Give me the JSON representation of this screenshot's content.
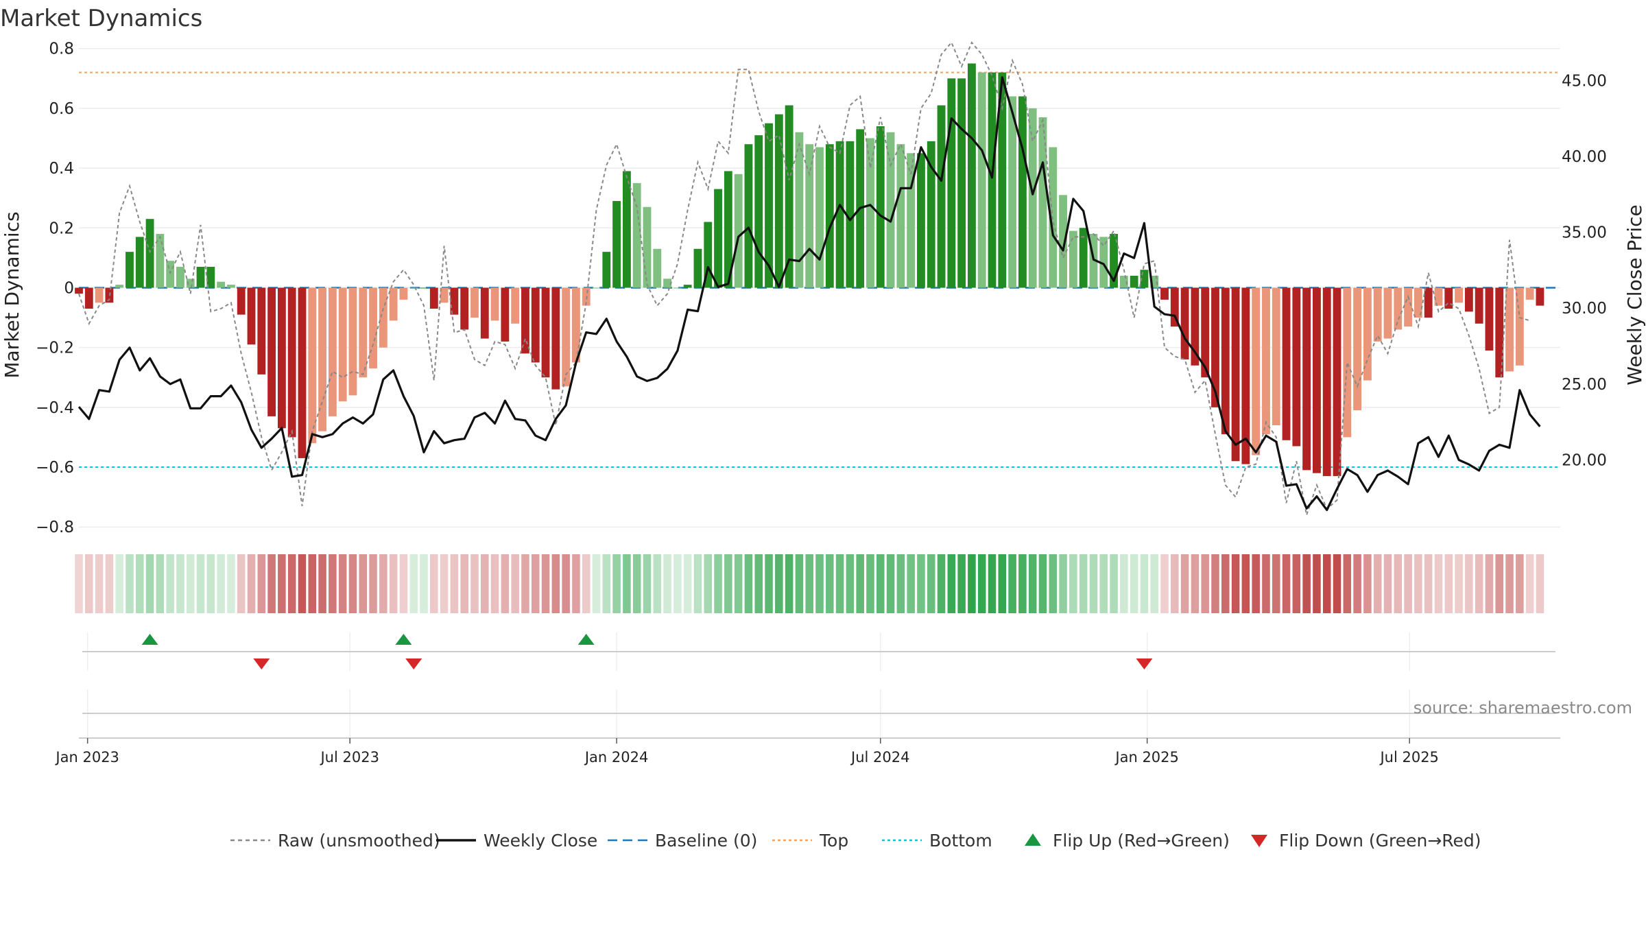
{
  "chart_data": {
    "type": "bar",
    "title": "Market Dynamics",
    "ylabel": "Market Dynamics",
    "y2label": "Weekly Close Price",
    "ylim": [
      -0.85,
      0.82
    ],
    "y2lim": [
      14.6,
      47.5
    ],
    "yticks": [
      "0.8",
      "0.6",
      "0.4",
      "0.2",
      "0",
      "−0.2",
      "−0.4",
      "−0.6",
      "−0.8"
    ],
    "y2ticks": [
      "45.00",
      "40.00",
      "35.00",
      "30.00",
      "25.00",
      "20.00"
    ],
    "x_start": "2022-12-26",
    "x_end": "2025-10-13",
    "xticks": [
      {
        "label": "Jan 2023",
        "date": "2023-01-01"
      },
      {
        "label": "Jul 2023",
        "date": "2023-07-01"
      },
      {
        "label": "Jan 2024",
        "date": "2024-01-01"
      },
      {
        "label": "Jul 2024",
        "date": "2024-07-01"
      },
      {
        "label": "Jan 2025",
        "date": "2025-01-01"
      },
      {
        "label": "Jul 2025",
        "date": "2025-07-01"
      }
    ],
    "top_level": 0.72,
    "bottom_level": -0.6,
    "baseline": 0,
    "grid": true,
    "legend_position": "bottom-center",
    "series": [
      {
        "name": "Raw (unsmoothed)",
        "kind": "line-dashed",
        "color": "#888888"
      },
      {
        "name": "Weekly Close",
        "kind": "line",
        "color": "#111111"
      },
      {
        "name": "Baseline (0)",
        "kind": "line-dashed",
        "color": "#1f77b4"
      },
      {
        "name": "Top",
        "kind": "line-dotted",
        "color": "#f4a261"
      },
      {
        "name": "Bottom",
        "kind": "line-dotted",
        "color": "#17becf"
      },
      {
        "name": "Flip Up (Red→Green)",
        "kind": "marker-up",
        "color": "#1a9641"
      },
      {
        "name": "Flip Down (Green→Red)",
        "kind": "marker-down",
        "color": "#d62728"
      }
    ],
    "weekly_start": "2022-12-26",
    "dynamics": [
      -0.02,
      -0.07,
      -0.05,
      -0.05,
      0.01,
      0.12,
      0.17,
      0.23,
      0.18,
      0.09,
      0.07,
      0.03,
      0.07,
      0.07,
      0.02,
      0.01,
      -0.09,
      -0.19,
      -0.29,
      -0.43,
      -0.47,
      -0.5,
      -0.57,
      -0.52,
      -0.48,
      -0.43,
      -0.38,
      -0.36,
      -0.3,
      -0.27,
      -0.2,
      -0.11,
      -0.04,
      0.0,
      0.0,
      -0.07,
      -0.05,
      -0.09,
      -0.14,
      -0.1,
      -0.17,
      -0.11,
      -0.18,
      -0.12,
      -0.22,
      -0.25,
      -0.3,
      -0.34,
      -0.33,
      -0.25,
      -0.06,
      0.0,
      0.12,
      0.29,
      0.39,
      0.35,
      0.27,
      0.13,
      0.03,
      0.0,
      0.01,
      0.13,
      0.22,
      0.33,
      0.39,
      0.38,
      0.48,
      0.51,
      0.55,
      0.58,
      0.61,
      0.52,
      0.48,
      0.47,
      0.48,
      0.49,
      0.49,
      0.53,
      0.5,
      0.54,
      0.52,
      0.48,
      0.45,
      0.45,
      0.49,
      0.61,
      0.7,
      0.7,
      0.75,
      0.72,
      0.72,
      0.72,
      0.64,
      0.64,
      0.6,
      0.57,
      0.47,
      0.31,
      0.19,
      0.2,
      0.18,
      0.17,
      0.18,
      0.04,
      0.04,
      0.06,
      0.04,
      -0.04,
      -0.13,
      -0.24,
      -0.26,
      -0.3,
      -0.4,
      -0.49,
      -0.58,
      -0.59,
      -0.56,
      -0.49,
      -0.46,
      -0.51,
      -0.53,
      -0.61,
      -0.62,
      -0.63,
      -0.63,
      -0.5,
      -0.41,
      -0.31,
      -0.18,
      -0.17,
      -0.14,
      -0.13,
      -0.1,
      -0.1,
      -0.06,
      -0.07,
      -0.05,
      -0.08,
      -0.12,
      -0.21,
      -0.3,
      -0.28,
      -0.26,
      -0.04,
      -0.06
    ],
    "raw": [
      -0.02,
      -0.12,
      -0.06,
      -0.04,
      0.25,
      0.34,
      0.22,
      0.12,
      0.17,
      0.05,
      0.12,
      -0.02,
      0.21,
      -0.08,
      -0.07,
      -0.05,
      -0.22,
      -0.35,
      -0.5,
      -0.61,
      -0.55,
      -0.48,
      -0.73,
      -0.48,
      -0.38,
      -0.28,
      -0.3,
      -0.28,
      -0.29,
      -0.19,
      -0.07,
      0.02,
      0.06,
      0.01,
      -0.06,
      -0.31,
      0.14,
      -0.15,
      -0.14,
      -0.24,
      -0.26,
      -0.18,
      -0.19,
      -0.27,
      -0.17,
      -0.26,
      -0.3,
      -0.46,
      -0.29,
      -0.25,
      -0.05,
      0.26,
      0.41,
      0.48,
      0.37,
      0.27,
      0.01,
      -0.06,
      -0.02,
      0.08,
      0.26,
      0.42,
      0.33,
      0.49,
      0.45,
      0.73,
      0.73,
      0.59,
      0.49,
      0.51,
      0.36,
      0.48,
      0.38,
      0.54,
      0.47,
      0.45,
      0.61,
      0.64,
      0.4,
      0.57,
      0.41,
      0.48,
      0.38,
      0.6,
      0.65,
      0.78,
      0.82,
      0.74,
      0.82,
      0.78,
      0.71,
      0.6,
      0.76,
      0.68,
      0.49,
      0.56,
      0.22,
      0.1,
      0.17,
      0.17,
      0.18,
      0.14,
      0.19,
      0.06,
      -0.1,
      0.08,
      0.09,
      -0.2,
      -0.23,
      -0.24,
      -0.35,
      -0.31,
      -0.49,
      -0.66,
      -0.7,
      -0.6,
      -0.59,
      -0.45,
      -0.5,
      -0.72,
      -0.58,
      -0.76,
      -0.66,
      -0.74,
      -0.71,
      -0.25,
      -0.33,
      -0.24,
      -0.16,
      -0.22,
      -0.11,
      -0.03,
      -0.13,
      0.05,
      -0.08,
      -0.05,
      -0.07,
      -0.16,
      -0.27,
      -0.42,
      -0.4,
      0.16,
      -0.1,
      -0.11
    ],
    "close": [
      23.5,
      22.7,
      24.6,
      24.5,
      26.6,
      27.4,
      25.9,
      26.7,
      25.5,
      25.0,
      25.3,
      23.4,
      23.4,
      24.2,
      24.2,
      24.9,
      23.8,
      22.0,
      20.8,
      21.4,
      22.1,
      18.9,
      19.0,
      21.7,
      21.5,
      21.7,
      22.4,
      22.8,
      22.4,
      23.0,
      25.3,
      25.9,
      24.2,
      22.9,
      20.5,
      21.9,
      21.1,
      21.3,
      21.4,
      22.8,
      23.1,
      22.4,
      23.9,
      22.7,
      22.6,
      21.6,
      21.3,
      22.7,
      23.6,
      26.4,
      28.4,
      28.3,
      29.3,
      27.8,
      26.8,
      25.5,
      25.2,
      25.4,
      26.0,
      27.2,
      29.9,
      29.8,
      32.7,
      31.4,
      31.6,
      34.7,
      35.3,
      33.7,
      32.8,
      31.4,
      33.2,
      33.1,
      33.9,
      33.2,
      35.3,
      36.8,
      35.8,
      36.6,
      36.8,
      36.1,
      35.7,
      37.9,
      37.9,
      40.6,
      39.3,
      38.4,
      42.5,
      41.8,
      41.2,
      40.4,
      38.6,
      45.2,
      42.9,
      40.5,
      37.5,
      39.6,
      34.8,
      33.8,
      37.2,
      36.4,
      33.2,
      32.9,
      31.8,
      33.6,
      33.3,
      35.6,
      30.1,
      29.6,
      29.5,
      28.0,
      27.1,
      26.1,
      24.5,
      21.9,
      21.0,
      21.4,
      20.5,
      21.6,
      21.2,
      18.3,
      18.4,
      16.8,
      17.6,
      16.7,
      18.1,
      19.4,
      19.0,
      17.9,
      19.0,
      19.3,
      18.9,
      18.4,
      21.1,
      21.5,
      20.2,
      21.6,
      20.0,
      19.7,
      19.3,
      20.6,
      21.0,
      20.8,
      24.6,
      23.0,
      22.2
    ],
    "flip_up": [
      "2023-02-13",
      "2023-08-07",
      "2023-12-11"
    ],
    "flip_down": [
      "2023-05-01",
      "2023-08-14",
      "2024-12-30"
    ]
  },
  "footer": {
    "source": "source: sharemaestro.com"
  },
  "colors": {
    "green_strong": "#228b22",
    "green_light": "#7fbf7f",
    "red_strong": "#b22222",
    "red_light": "#e9967a",
    "strip_green": "#1f9d3d",
    "strip_red": "#b22222"
  }
}
